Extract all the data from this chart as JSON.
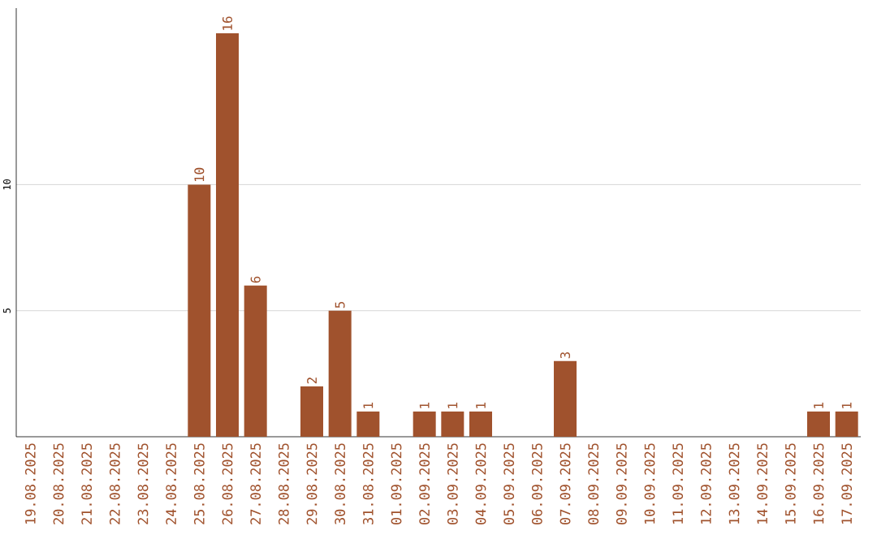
{
  "chart_data": {
    "type": "bar",
    "categories": [
      "19.08.2025",
      "20.08.2025",
      "21.08.2025",
      "22.08.2025",
      "23.08.2025",
      "24.08.2025",
      "25.08.2025",
      "26.08.2025",
      "27.08.2025",
      "28.08.2025",
      "29.08.2025",
      "30.08.2025",
      "31.08.2025",
      "01.09.2025",
      "02.09.2025",
      "03.09.2025",
      "04.09.2025",
      "05.09.2025",
      "06.09.2025",
      "07.09.2025",
      "08.09.2025",
      "09.09.2025",
      "10.09.2025",
      "11.09.2025",
      "12.09.2025",
      "13.09.2025",
      "14.09.2025",
      "15.09.2025",
      "16.09.2025",
      "17.09.2025"
    ],
    "values": [
      0,
      0,
      0,
      0,
      0,
      0,
      10,
      16,
      6,
      0,
      2,
      5,
      1,
      0,
      1,
      1,
      1,
      0,
      0,
      3,
      0,
      0,
      0,
      0,
      0,
      0,
      0,
      0,
      1,
      1
    ],
    "value_labels": [
      null,
      null,
      null,
      null,
      null,
      null,
      "10",
      "16",
      "6",
      null,
      "2",
      "5",
      "1",
      null,
      "1",
      "1",
      "1",
      null,
      null,
      "3",
      null,
      null,
      null,
      null,
      null,
      null,
      null,
      null,
      "1",
      "1"
    ],
    "color": "#a0522d",
    "ylim": [
      0,
      17
    ],
    "yticks": [
      5,
      10
    ],
    "grid": "y"
  }
}
